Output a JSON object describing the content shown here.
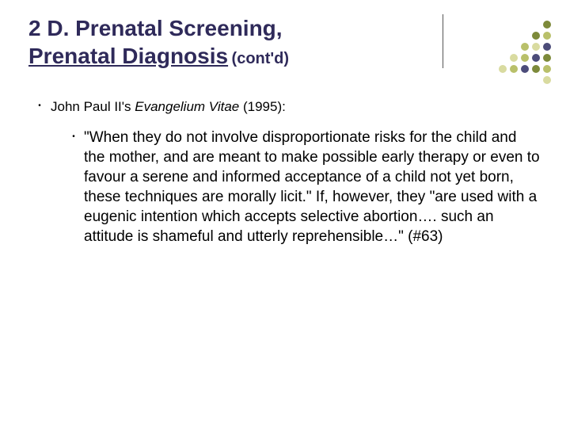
{
  "title": {
    "line1": "2 D. Prenatal Screening,",
    "line2_underlined": "Prenatal Diagnosis",
    "line2_suffix": " (cont'd)",
    "color": "#2f2a5a",
    "main_fontsize": 28,
    "sub_fontsize": 20
  },
  "rule": {
    "color": "#555555",
    "height": 68
  },
  "bullets": {
    "lvl1": {
      "prefix": "John Paul II's ",
      "italic": "Evangelium Vitae",
      "suffix": " (1995):",
      "fontsize": 17
    },
    "lvl2": {
      "text": "\"When they do not involve disproportionate risks for the child and the mother, and are meant to make possible early therapy or even to favour a serene and informed acceptance of a child not yet born, these techniques are morally licit.\" If, however, they \"are used with a eugenic intention which accepts selective abortion…. such an attitude is shameful and utterly reprehensible…\" (#63)",
      "fontsize": 19
    },
    "bullet_char": "•"
  },
  "dots": {
    "grid_cols": 5,
    "cells": [
      [
        "",
        "",
        "",
        "",
        "#7d8a3a"
      ],
      [
        "",
        "",
        "",
        "#7d8a3a",
        "#b9c06a"
      ],
      [
        "",
        "",
        "#b9c06a",
        "#d9dba0",
        "#4c4c7a"
      ],
      [
        "",
        "#d9dba0",
        "#b9c06a",
        "#4c4c7a",
        "#7d8a3a"
      ],
      [
        "#d9dba0",
        "#b9c06a",
        "#4c4c7a",
        "#7d8a3a",
        "#b9c06a"
      ],
      [
        "",
        "",
        "",
        "",
        "#d9dba0"
      ]
    ]
  },
  "background_color": "#ffffff"
}
